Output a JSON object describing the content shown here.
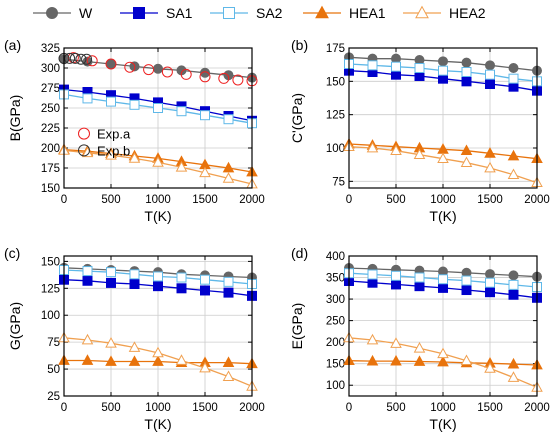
{
  "legend": [
    {
      "name": "W",
      "color": "#666666",
      "marker": "circle",
      "fill": true
    },
    {
      "name": "SA1",
      "color": "#0000cc",
      "marker": "square",
      "fill": true
    },
    {
      "name": "SA2",
      "color": "#5fb8e8",
      "marker": "square",
      "fill": false
    },
    {
      "name": "HEA1",
      "color": "#e8730c",
      "marker": "triangle",
      "fill": true
    },
    {
      "name": "HEA2",
      "color": "#f0a050",
      "marker": "triangle",
      "fill": false
    }
  ],
  "chart_data": [
    {
      "type": "line",
      "panel_label": "(a)",
      "xlabel": "T(K)",
      "ylabel": "B(GPa)",
      "xlim": [
        0,
        2000
      ],
      "ylim": [
        150,
        325
      ],
      "xticks": [
        0,
        500,
        1000,
        1500,
        2000
      ],
      "yticks": [
        150,
        175,
        200,
        225,
        250,
        275,
        300,
        325
      ],
      "x": [
        0,
        250,
        500,
        750,
        1000,
        1250,
        1500,
        1750,
        2000
      ],
      "series": [
        {
          "name": "W",
          "values": [
            311,
            308,
            305,
            302,
            299,
            297,
            294,
            291,
            288
          ]
        },
        {
          "name": "SA1",
          "values": [
            273,
            270,
            266,
            262,
            257,
            252,
            246,
            240,
            234
          ]
        },
        {
          "name": "SA2",
          "values": [
            267,
            262,
            258,
            254,
            250,
            246,
            241,
            236,
            231
          ]
        },
        {
          "name": "HEA1",
          "values": [
            198,
            196,
            193,
            190,
            187,
            183,
            179,
            175,
            170
          ]
        },
        {
          "name": "HEA2",
          "values": [
            197,
            194,
            191,
            187,
            182,
            176,
            169,
            162,
            155
          ]
        }
      ],
      "exp_legend": [
        {
          "name": "Exp.a",
          "color": "#ee2222"
        },
        {
          "name": "Exp.b",
          "color": "#333333"
        }
      ],
      "exp_points": {
        "Exp.a": {
          "x": [
            100,
            300,
            500,
            700,
            900,
            1100,
            1300,
            1500,
            1700,
            1850,
            2000
          ],
          "values": [
            313,
            309,
            305,
            301,
            298,
            295,
            292,
            289,
            287,
            285,
            284
          ]
        },
        "Exp.b": {
          "x": [
            0,
            60,
            120,
            180,
            240
          ],
          "values": [
            312,
            312,
            312,
            311,
            311
          ]
        }
      }
    },
    {
      "type": "line",
      "panel_label": "(b)",
      "xlabel": "T(K)",
      "ylabel": "C'(GPa)",
      "xlim": [
        0,
        2000
      ],
      "ylim": [
        70,
        175
      ],
      "xticks": [
        0,
        500,
        1000,
        1500,
        2000
      ],
      "yticks": [
        75,
        100,
        125,
        150,
        175
      ],
      "x": [
        0,
        250,
        500,
        750,
        1000,
        1250,
        1500,
        1750,
        2000
      ],
      "series": [
        {
          "name": "W",
          "values": [
            168,
            167,
            167,
            166,
            165,
            164,
            162,
            160,
            158
          ]
        },
        {
          "name": "SA1",
          "values": [
            158,
            157,
            155,
            154,
            152,
            150,
            148,
            146,
            143
          ]
        },
        {
          "name": "SA2",
          "values": [
            163,
            162,
            161,
            160,
            158,
            157,
            155,
            152,
            150
          ]
        },
        {
          "name": "HEA1",
          "values": [
            103,
            102,
            101,
            100,
            99,
            98,
            96,
            94,
            92
          ]
        },
        {
          "name": "HEA2",
          "values": [
            101,
            100,
            98,
            95,
            92,
            89,
            85,
            80,
            74
          ]
        }
      ]
    },
    {
      "type": "line",
      "panel_label": "(c)",
      "xlabel": "T(K)",
      "ylabel": "G(GPa)",
      "xlim": [
        0,
        2000
      ],
      "ylim": [
        25,
        155
      ],
      "xticks": [
        0,
        500,
        1000,
        1500,
        2000
      ],
      "yticks": [
        25,
        50,
        75,
        100,
        125,
        150
      ],
      "x": [
        0,
        250,
        500,
        750,
        1000,
        1250,
        1500,
        1750,
        2000
      ],
      "series": [
        {
          "name": "W",
          "values": [
            144,
            143,
            142,
            141,
            140,
            138,
            137,
            136,
            135
          ]
        },
        {
          "name": "SA1",
          "values": [
            133,
            132,
            130,
            129,
            127,
            125,
            123,
            121,
            118
          ]
        },
        {
          "name": "SA2",
          "values": [
            142,
            141,
            140,
            138,
            136,
            135,
            133,
            131,
            129
          ]
        },
        {
          "name": "HEA1",
          "values": [
            58,
            58,
            57,
            57,
            57,
            56,
            56,
            56,
            55
          ]
        },
        {
          "name": "HEA2",
          "values": [
            79,
            77,
            74,
            70,
            65,
            58,
            51,
            43,
            34
          ]
        }
      ]
    },
    {
      "type": "line",
      "panel_label": "(d)",
      "xlabel": "T(K)",
      "ylabel": "E(GPa)",
      "xlim": [
        0,
        2000
      ],
      "ylim": [
        75,
        400
      ],
      "xticks": [
        0,
        500,
        1000,
        1500,
        2000
      ],
      "yticks": [
        100,
        150,
        200,
        250,
        300,
        350,
        400
      ],
      "x": [
        0,
        250,
        500,
        750,
        1000,
        1250,
        1500,
        1750,
        2000
      ],
      "series": [
        {
          "name": "W",
          "values": [
            372,
            370,
            368,
            366,
            364,
            361,
            358,
            355,
            352
          ]
        },
        {
          "name": "SA1",
          "values": [
            342,
            338,
            334,
            330,
            326,
            321,
            316,
            310,
            303
          ]
        },
        {
          "name": "SA2",
          "values": [
            360,
            357,
            354,
            350,
            346,
            343,
            338,
            333,
            328
          ]
        },
        {
          "name": "HEA1",
          "values": [
            157,
            156,
            156,
            155,
            154,
            152,
            151,
            149,
            147
          ]
        },
        {
          "name": "HEA2",
          "values": [
            210,
            205,
            197,
            186,
            173,
            157,
            139,
            118,
            95
          ]
        }
      ]
    }
  ]
}
